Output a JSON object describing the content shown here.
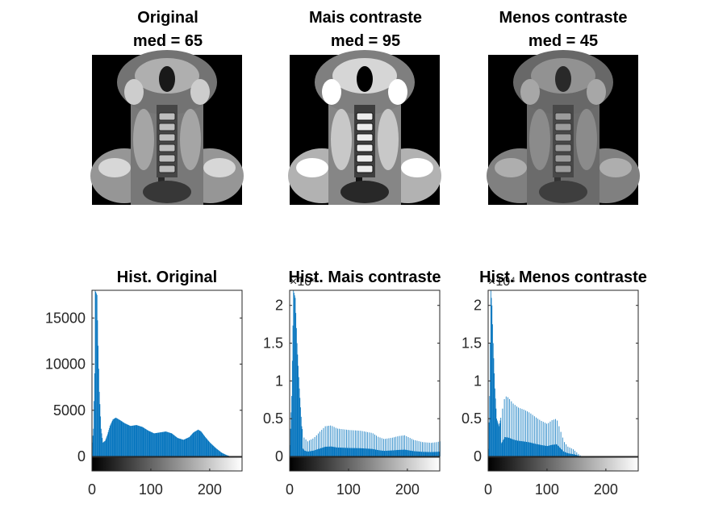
{
  "colors": {
    "bar": "#0072BD",
    "axis": "#262626",
    "scan_bg": "#000000"
  },
  "images": [
    {
      "title_line1": "Original",
      "title_line2": "med = 65",
      "contrast": 1.0,
      "brightness": 0
    },
    {
      "title_line1": "Mais contraste",
      "title_line2": "med = 95",
      "contrast": 1.45,
      "brightness": 18
    },
    {
      "title_line1": "Menos contraste",
      "title_line2": "med = 45",
      "contrast": 0.7,
      "brightness": -15
    }
  ],
  "chart_data": [
    {
      "type": "bar",
      "title": "Hist. Original",
      "xlim": [
        0,
        255
      ],
      "ylim": [
        0,
        18000
      ],
      "exponent_label": "",
      "xticks": [
        0,
        100,
        200
      ],
      "yticks": [
        {
          "value": 0,
          "label": "0"
        },
        {
          "value": 5000,
          "label": "5000"
        },
        {
          "value": 10000,
          "label": "10000"
        },
        {
          "value": 15000,
          "label": "15000"
        }
      ],
      "profile": [
        [
          0,
          1500
        ],
        [
          2,
          3000
        ],
        [
          4,
          9000
        ],
        [
          5,
          18000
        ],
        [
          8,
          17500
        ],
        [
          10,
          12000
        ],
        [
          12,
          7000
        ],
        [
          15,
          3000
        ],
        [
          18,
          1500
        ],
        [
          22,
          1700
        ],
        [
          26,
          2400
        ],
        [
          30,
          3300
        ],
        [
          35,
          4000
        ],
        [
          40,
          4200
        ],
        [
          48,
          3900
        ],
        [
          55,
          3600
        ],
        [
          65,
          3300
        ],
        [
          75,
          3400
        ],
        [
          85,
          3200
        ],
        [
          95,
          2800
        ],
        [
          105,
          2500
        ],
        [
          115,
          2600
        ],
        [
          125,
          2700
        ],
        [
          135,
          2500
        ],
        [
          145,
          2000
        ],
        [
          155,
          1800
        ],
        [
          165,
          2100
        ],
        [
          172,
          2600
        ],
        [
          180,
          2900
        ],
        [
          185,
          2700
        ],
        [
          192,
          2100
        ],
        [
          200,
          1500
        ],
        [
          210,
          900
        ],
        [
          220,
          400
        ],
        [
          228,
          150
        ],
        [
          235,
          0
        ],
        [
          255,
          0
        ]
      ],
      "sparse": false
    },
    {
      "type": "bar",
      "title": "Hist. Mais contraste",
      "xlim": [
        0,
        255
      ],
      "ylim": [
        0,
        22000
      ],
      "exponent_label": "×10⁴",
      "xticks": [
        0,
        100,
        200
      ],
      "yticks": [
        {
          "value": 0,
          "label": "0"
        },
        {
          "value": 5000,
          "label": "0.5"
        },
        {
          "value": 10000,
          "label": "1"
        },
        {
          "value": 15000,
          "label": "1.5"
        },
        {
          "value": 20000,
          "label": "2"
        }
      ],
      "profile": [
        [
          0,
          1500
        ],
        [
          3,
          8000
        ],
        [
          6,
          22000
        ],
        [
          9,
          21000
        ],
        [
          12,
          15000
        ],
        [
          16,
          9000
        ],
        [
          20,
          4000
        ],
        [
          24,
          2500
        ],
        [
          30,
          2000
        ],
        [
          40,
          2400
        ],
        [
          50,
          3200
        ],
        [
          60,
          4000
        ],
        [
          70,
          4100
        ],
        [
          80,
          3700
        ],
        [
          100,
          3500
        ],
        [
          120,
          3400
        ],
        [
          140,
          3100
        ],
        [
          150,
          2600
        ],
        [
          160,
          2300
        ],
        [
          175,
          2500
        ],
        [
          185,
          2700
        ],
        [
          195,
          2800
        ],
        [
          210,
          2200
        ],
        [
          225,
          1900
        ],
        [
          240,
          1800
        ],
        [
          250,
          1900
        ],
        [
          255,
          2000
        ]
      ],
      "sparse": true
    },
    {
      "type": "bar",
      "title": "Hist. Menos contraste",
      "xlim": [
        0,
        255
      ],
      "ylim": [
        0,
        22000
      ],
      "exponent_label": "×10⁴",
      "xticks": [
        0,
        100,
        200
      ],
      "yticks": [
        {
          "value": 0,
          "label": "0"
        },
        {
          "value": 5000,
          "label": "0.5"
        },
        {
          "value": 10000,
          "label": "1"
        },
        {
          "value": 15000,
          "label": "1.5"
        },
        {
          "value": 20000,
          "label": "2"
        }
      ],
      "profile": [
        [
          0,
          1000
        ],
        [
          2,
          8000
        ],
        [
          4,
          22000
        ],
        [
          6,
          20000
        ],
        [
          8,
          15000
        ],
        [
          11,
          9000
        ],
        [
          14,
          5000
        ],
        [
          18,
          4000
        ],
        [
          22,
          5500
        ],
        [
          28,
          8000
        ],
        [
          34,
          7800
        ],
        [
          42,
          7000
        ],
        [
          50,
          6500
        ],
        [
          60,
          6200
        ],
        [
          70,
          5800
        ],
        [
          80,
          5200
        ],
        [
          90,
          4700
        ],
        [
          100,
          4300
        ],
        [
          108,
          4800
        ],
        [
          116,
          5000
        ],
        [
          122,
          3500
        ],
        [
          128,
          2000
        ],
        [
          135,
          1300
        ],
        [
          145,
          900
        ],
        [
          152,
          400
        ],
        [
          158,
          0
        ],
        [
          255,
          0
        ]
      ],
      "sparse": true
    }
  ]
}
